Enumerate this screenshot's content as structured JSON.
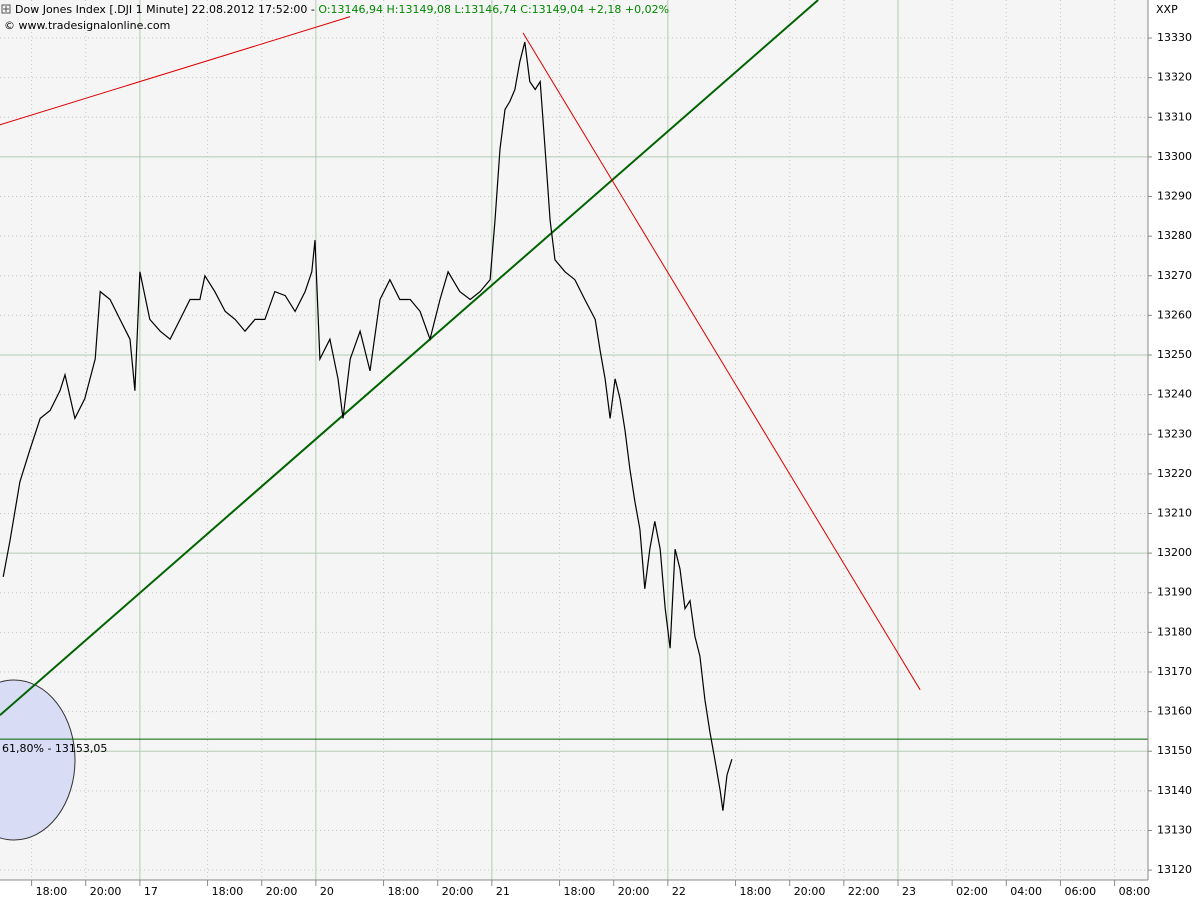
{
  "chart_data": {
    "type": "line",
    "title": "Dow Jones Index [.DJI  1 Minute] 22.08.2012 17:52:00 -",
    "quote": "O:13146,94 H:13149,08 L:13146,74 C:13149,04 +2,18 +0,02%",
    "source": "© www.tradesignalonline.com",
    "axis_label": "XXP",
    "color": "#000000",
    "grid": true,
    "xlim": [
      0,
      2544
    ],
    "ylim": [
      13117.5,
      13339.6
    ],
    "xticks": [
      {
        "value": 70,
        "label": "18:00"
      },
      {
        "value": 190,
        "label": "20:00"
      },
      {
        "value": 310,
        "label": "17"
      },
      {
        "value": 460,
        "label": "18:00"
      },
      {
        "value": 580,
        "label": "20:00"
      },
      {
        "value": 700,
        "label": "20"
      },
      {
        "value": 850,
        "label": "18:00"
      },
      {
        "value": 970,
        "label": "20:00"
      },
      {
        "value": 1090,
        "label": "21"
      },
      {
        "value": 1240,
        "label": "18:00"
      },
      {
        "value": 1360,
        "label": "20:00"
      },
      {
        "value": 1480,
        "label": "22"
      },
      {
        "value": 1630,
        "label": "18:00"
      },
      {
        "value": 1750,
        "label": "20:00"
      },
      {
        "value": 1870,
        "label": "22:00"
      },
      {
        "value": 1990,
        "label": "23"
      },
      {
        "value": 2110,
        "label": "02:00"
      },
      {
        "value": 2230,
        "label": "04:00"
      },
      {
        "value": 2350,
        "label": "06:00"
      },
      {
        "value": 2470,
        "label": "08:00"
      }
    ],
    "yticks": [
      13120,
      13130,
      13140,
      13150,
      13160,
      13170,
      13180,
      13190,
      13200,
      13210,
      13220,
      13230,
      13240,
      13250,
      13260,
      13270,
      13280,
      13290,
      13300,
      13310,
      13320,
      13330
    ],
    "x": [
      7,
      22,
      44,
      66,
      89,
      111,
      133,
      144,
      166,
      188,
      211,
      222,
      244,
      266,
      288,
      299,
      310,
      332,
      355,
      377,
      399,
      421,
      443,
      454,
      476,
      499,
      521,
      543,
      565,
      587,
      609,
      632,
      654,
      676,
      691,
      698,
      709,
      731,
      749,
      760,
      776,
      798,
      820,
      842,
      864,
      886,
      909,
      931,
      953,
      975,
      993,
      1019,
      1042,
      1064,
      1086,
      1097,
      1108,
      1119,
      1130,
      1141,
      1152,
      1163,
      1174,
      1186,
      1197,
      1208,
      1219,
      1230,
      1252,
      1274,
      1296,
      1319,
      1330,
      1341,
      1352,
      1363,
      1374,
      1385,
      1396,
      1407,
      1418,
      1429,
      1440,
      1451,
      1463,
      1474,
      1485,
      1496,
      1507,
      1518,
      1529,
      1540,
      1551,
      1562,
      1573,
      1584,
      1596,
      1602,
      1611,
      1622
    ],
    "values": [
      13194,
      13203,
      13218,
      13226,
      13234,
      13236,
      13241,
      13245,
      13234,
      13239,
      13249,
      13266,
      13264,
      13259,
      13254,
      13241,
      13271,
      13259,
      13256,
      13254,
      13259,
      13264,
      13264,
      13270,
      13266,
      13261,
      13259,
      13256,
      13259,
      13259,
      13266,
      13265,
      13261,
      13266,
      13271,
      13279,
      13249,
      13254,
      13244,
      13234,
      13249,
      13256,
      13246,
      13264,
      13269,
      13264,
      13264,
      13261,
      13254,
      13264,
      13271,
      13266,
      13264,
      13266,
      13269,
      13284,
      13302,
      13312,
      13314,
      13317,
      13324,
      13329,
      13319,
      13317,
      13319,
      13302,
      13284,
      13274,
      13271,
      13269,
      13264,
      13259,
      13251,
      13244,
      13234,
      13244,
      13239,
      13231,
      13221,
      13213,
      13206,
      13191,
      13201,
      13208,
      13201,
      13186,
      13176,
      13201,
      13196,
      13186,
      13188,
      13179,
      13174,
      13163,
      13155,
      13148,
      13140,
      13135,
      13144,
      13148
    ],
    "trendlines": [
      {
        "color": "#006400",
        "x": [
          0,
          1813
        ],
        "y": [
          13159.1,
          13339.6
        ]
      },
      {
        "color": "#dd0000",
        "x": [
          0,
          776
        ],
        "y": [
          13308.1,
          13335.4
        ]
      },
      {
        "color": "#dd0000",
        "x": [
          1159,
          2039
        ],
        "y": [
          13331.3,
          13165.5
        ]
      }
    ],
    "fib_level": {
      "value": 13153.05,
      "label": "61,80% - 13153,05",
      "color": "#006400"
    }
  }
}
